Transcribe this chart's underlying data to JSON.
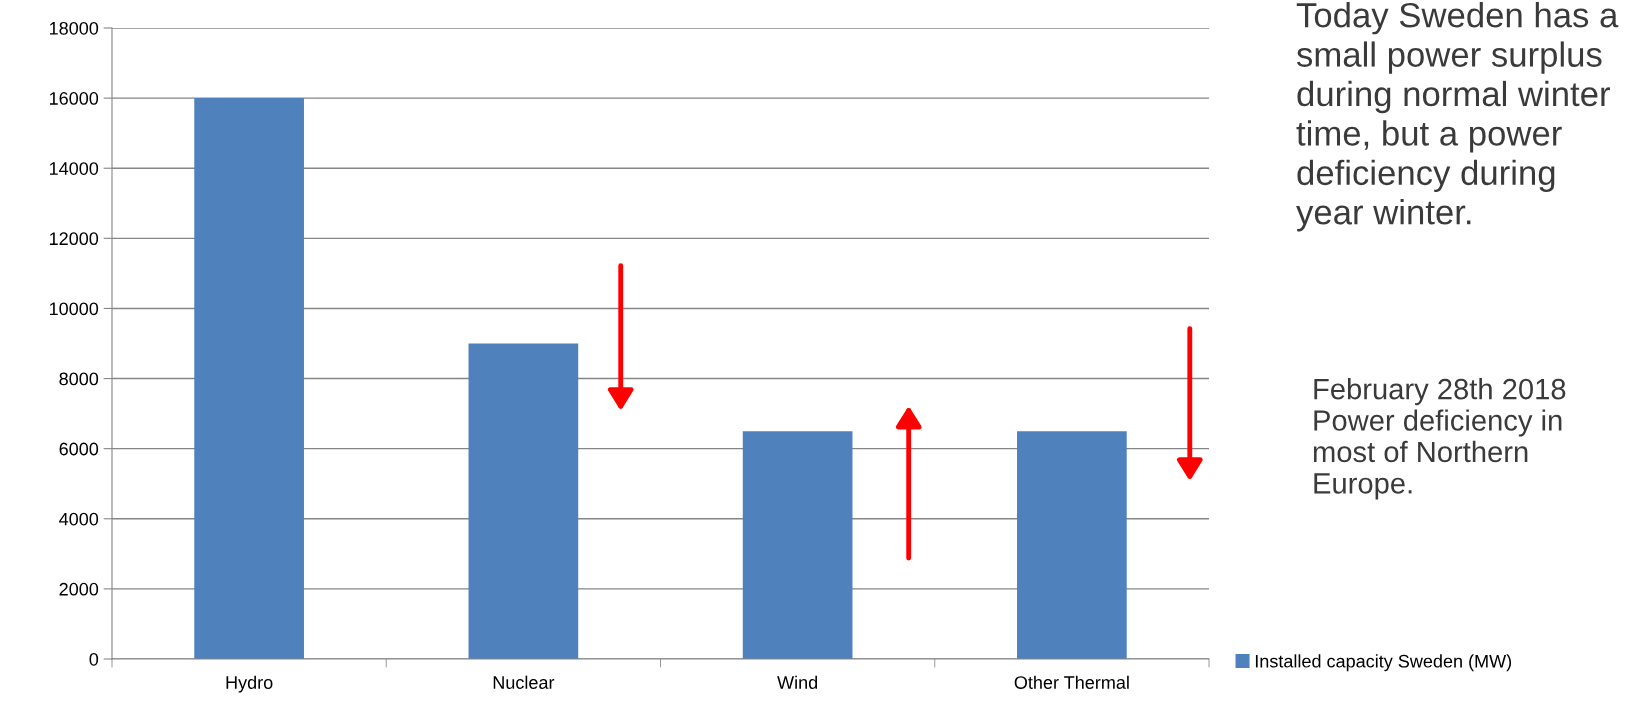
{
  "chart_data": {
    "type": "bar",
    "categories": [
      "Hydro",
      "Nuclear",
      "Wind",
      "Other Thermal"
    ],
    "series": [
      {
        "name": "Installed capacity Sweden (MW)",
        "color": "#4f81bd",
        "values": [
          16000,
          9000,
          6500,
          6500
        ]
      }
    ],
    "ylim": [
      0,
      18000
    ],
    "yticks": [
      0,
      2000,
      4000,
      6000,
      8000,
      10000,
      12000,
      14000,
      16000,
      18000
    ],
    "grid": "y",
    "legend": "bottom right",
    "annotations": [
      "Today Sweden has a\nsmall power surplus\nduring normal winter\ntime, but a power\ndeficiency during\nyear winter.",
      "February 28th 2018\nPower deficiency in\nmost of Northern\nEurope."
    ]
  }
}
